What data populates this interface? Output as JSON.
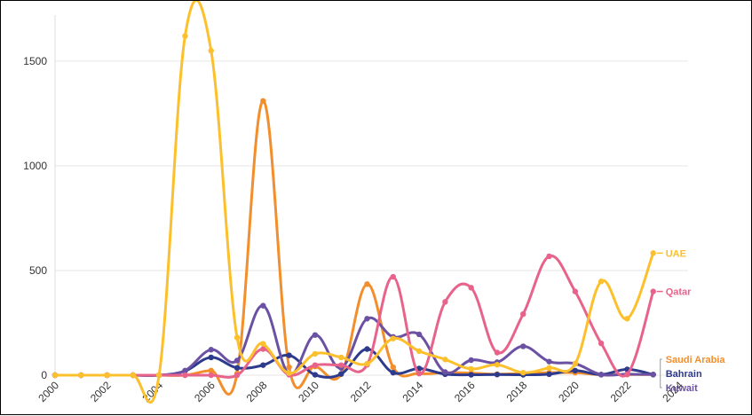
{
  "chart_data": {
    "type": "line",
    "title": "",
    "xlabel": "",
    "ylabel": "",
    "x": [
      2000,
      2001,
      2002,
      2003,
      2004,
      2005,
      2006,
      2007,
      2008,
      2009,
      2010,
      2011,
      2012,
      2013,
      2014,
      2015,
      2016,
      2017,
      2018,
      2019,
      2020,
      2021,
      2022,
      2023
    ],
    "xlim": [
      2000,
      2023
    ],
    "ylim": [
      0,
      1720
    ],
    "x_ticks": [
      "2000",
      "2002",
      "2004",
      "2006",
      "2008",
      "2010",
      "2012",
      "2014",
      "2016",
      "2018",
      "2020",
      "2022",
      "2024"
    ],
    "y_ticks": [
      "0",
      "500",
      "1000",
      "1500"
    ],
    "grid": "horizontal",
    "legend": "end-of-line labels",
    "series": [
      {
        "name": "Saudi Arabia",
        "color": "#f28e2b",
        "values": [
          0,
          0,
          0,
          0,
          0,
          0,
          22,
          8,
          1310,
          38,
          42,
          5,
          435,
          38,
          8,
          12,
          10,
          5,
          8,
          12,
          12,
          2,
          3,
          3
        ]
      },
      {
        "name": "Bahrain",
        "color": "#2e3a8c",
        "values": [
          0,
          0,
          0,
          0,
          0,
          20,
          85,
          35,
          48,
          95,
          2,
          6,
          125,
          12,
          32,
          5,
          2,
          3,
          2,
          5,
          22,
          3,
          28,
          3
        ]
      },
      {
        "name": "Kuwait",
        "color": "#6a51a3",
        "values": [
          0,
          0,
          0,
          0,
          0,
          22,
          122,
          70,
          332,
          5,
          192,
          35,
          270,
          183,
          195,
          15,
          72,
          62,
          138,
          65,
          55,
          3,
          5,
          3
        ]
      },
      {
        "name": "Qatar",
        "color": "#e8638b",
        "values": [
          0,
          0,
          0,
          0,
          0,
          0,
          0,
          0,
          125,
          2,
          48,
          48,
          50,
          470,
          8,
          350,
          418,
          108,
          292,
          568,
          400,
          152,
          5,
          400
        ]
      },
      {
        "name": "UAE",
        "color": "#fcc02d",
        "values": [
          0,
          0,
          0,
          0,
          0,
          1620,
          1550,
          180,
          150,
          10,
          102,
          85,
          55,
          175,
          115,
          75,
          30,
          50,
          12,
          35,
          55,
          448,
          270,
          583
        ]
      }
    ]
  }
}
